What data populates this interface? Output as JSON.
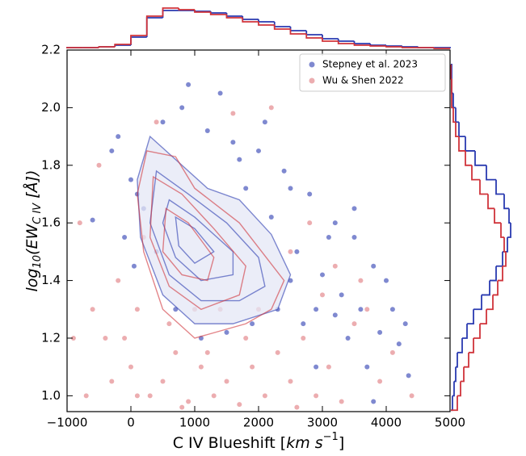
{
  "chart_data": {
    "type": "scatter",
    "xlabel": [
      "C IV Blueshift [",
      "km s",
      "−1",
      "]"
    ],
    "ylabel": [
      "log",
      "10",
      "(EW",
      "C IV",
      " [Å])"
    ],
    "xlim": [
      -1000,
      5000
    ],
    "ylim": [
      0.945,
      2.2
    ],
    "xticks": [
      {
        "value": -1000,
        "label": "−1000"
      },
      0,
      1000,
      2000,
      3000,
      4000,
      5000
    ],
    "yticks": [
      {
        "value": 1.0,
        "label": "1.0"
      },
      1.2,
      1.4,
      1.6,
      1.8,
      {
        "value": 2.0,
        "label": "2.0"
      },
      2.2
    ],
    "legend": "upper right",
    "series": [
      {
        "name": "Stepney et al. 2023",
        "color": "#2a3ab0",
        "x": [
          500,
          800,
          1200,
          1600,
          2000,
          2400,
          2800,
          3200,
          3500,
          3800,
          4100,
          4350,
          -300,
          -200,
          100,
          0,
          200,
          2600,
          3000,
          3300,
          3600,
          3900,
          4200,
          2200,
          1800,
          2500,
          2900,
          3400,
          3700,
          2700,
          3100,
          2300,
          1900,
          1500,
          1100,
          700,
          400,
          -100,
          50,
          1400,
          900,
          3500,
          4000,
          2100,
          2900,
          3800,
          1700,
          2500,
          3200,
          4300,
          -600
        ],
        "y": [
          1.95,
          2.0,
          1.92,
          1.88,
          1.85,
          1.78,
          1.7,
          1.6,
          1.55,
          1.45,
          1.3,
          1.07,
          1.85,
          1.9,
          1.7,
          1.75,
          1.65,
          1.5,
          1.42,
          1.35,
          1.3,
          1.22,
          1.18,
          1.62,
          1.72,
          1.4,
          1.3,
          1.2,
          1.1,
          1.25,
          1.55,
          1.3,
          1.25,
          1.22,
          1.2,
          1.3,
          1.5,
          1.55,
          1.45,
          2.05,
          2.08,
          1.65,
          1.4,
          1.95,
          1.1,
          0.98,
          1.82,
          1.72,
          1.28,
          1.25,
          1.61
        ],
        "contour_fill": "#e4e7f5",
        "contours": [
          {
            "x": [
              300,
              700,
              1200,
              1700,
              2200,
              2500,
              2300,
              1600,
              1000,
              500,
              150,
              100
            ],
            "y": [
              1.9,
              1.82,
              1.72,
              1.68,
              1.56,
              1.42,
              1.3,
              1.25,
              1.25,
              1.35,
              1.55,
              1.75
            ]
          },
          {
            "x": [
              400,
              900,
              1500,
              2000,
              2100,
              1700,
              1100,
              600,
              300
            ],
            "y": [
              1.78,
              1.7,
              1.6,
              1.48,
              1.38,
              1.33,
              1.33,
              1.42,
              1.6
            ]
          },
          {
            "x": [
              600,
              1000,
              1600,
              1600,
              1100,
              700,
              500
            ],
            "y": [
              1.68,
              1.62,
              1.5,
              1.42,
              1.4,
              1.48,
              1.6
            ]
          },
          {
            "x": [
              700,
              1000,
              1300,
              1000,
              750
            ],
            "y": [
              1.62,
              1.58,
              1.5,
              1.46,
              1.52
            ]
          }
        ],
        "xhist": {
          "bins": [
            -1000,
            -750,
            -500,
            -250,
            0,
            250,
            500,
            750,
            1000,
            1250,
            1500,
            1750,
            2000,
            2250,
            2500,
            2750,
            3000,
            3250,
            3500,
            3750,
            4000,
            4250,
            4500,
            4750,
            5000
          ],
          "counts": [
            1,
            1,
            2,
            4,
            14,
            38,
            47,
            47,
            46,
            44,
            40,
            36,
            33,
            27,
            22,
            17,
            12,
            9,
            6,
            4,
            3,
            2,
            1,
            1
          ]
        },
        "yhist": {
          "bins": [
            0.95,
            1.0,
            1.05,
            1.1,
            1.15,
            1.2,
            1.25,
            1.3,
            1.35,
            1.4,
            1.45,
            1.5,
            1.55,
            1.6,
            1.65,
            1.7,
            1.75,
            1.8,
            1.85,
            1.9,
            1.95,
            2.0,
            2.05,
            2.1,
            2.15
          ],
          "counts": [
            2,
            4,
            6,
            8,
            14,
            20,
            28,
            38,
            48,
            56,
            64,
            70,
            74,
            72,
            66,
            56,
            44,
            30,
            18,
            10,
            6,
            3,
            1,
            1
          ]
        }
      },
      {
        "name": "Wu & Shen 2022",
        "color": "#d0333a",
        "x": [
          -800,
          -600,
          -400,
          -200,
          0,
          100,
          300,
          500,
          700,
          900,
          1100,
          1300,
          1500,
          1700,
          1900,
          2100,
          2300,
          2500,
          2700,
          2900,
          3100,
          3300,
          3500,
          3700,
          3900,
          4100,
          -900,
          -700,
          200,
          400,
          -500,
          1600,
          2800,
          3200,
          2500,
          -100,
          600,
          1200,
          1800,
          2000,
          4400,
          2200,
          3000,
          -300,
          800,
          1400,
          3600,
          100,
          2600,
          1000
        ],
        "y": [
          1.6,
          1.3,
          1.2,
          1.4,
          1.1,
          1.3,
          1.0,
          1.05,
          1.15,
          0.98,
          1.1,
          1.0,
          1.05,
          0.97,
          1.1,
          1.0,
          1.15,
          1.05,
          1.2,
          1.0,
          1.1,
          0.98,
          1.25,
          1.3,
          1.05,
          1.15,
          1.2,
          1.0,
          1.55,
          1.95,
          1.8,
          1.98,
          1.6,
          1.45,
          1.5,
          1.2,
          1.25,
          1.15,
          1.2,
          1.3,
          1.0,
          2.0,
          1.35,
          1.05,
          0.96,
          1.3,
          1.4,
          1.0,
          0.96,
          1.3
        ],
        "contours": [
          {
            "x": [
              250,
              700,
              1000,
              1700,
              2400,
              2200,
              1800,
              1000,
              500,
              200,
              100
            ],
            "y": [
              1.85,
              1.83,
              1.72,
              1.6,
              1.4,
              1.3,
              1.25,
              1.2,
              1.3,
              1.5,
              1.7
            ]
          },
          {
            "x": [
              350,
              800,
              1300,
              1800,
              1700,
              1100,
              600,
              300
            ],
            "y": [
              1.76,
              1.7,
              1.58,
              1.45,
              1.35,
              1.3,
              1.38,
              1.55
            ]
          },
          {
            "x": [
              550,
              900,
              1300,
              1200,
              800,
              500
            ],
            "y": [
              1.65,
              1.6,
              1.48,
              1.4,
              1.42,
              1.5
            ]
          }
        ],
        "xhist": {
          "bins": [
            -1000,
            -750,
            -500,
            -250,
            0,
            250,
            500,
            750,
            1000,
            1250,
            1500,
            1750,
            2000,
            2250,
            2500,
            2750,
            3000,
            3250,
            3500,
            3750,
            4000,
            4250,
            4500,
            4750,
            5000
          ],
          "counts": [
            1,
            1,
            2,
            5,
            16,
            40,
            50,
            48,
            45,
            42,
            38,
            33,
            29,
            24,
            18,
            13,
            9,
            6,
            4,
            3,
            2,
            1,
            1,
            0
          ]
        },
        "yhist": {
          "bins": [
            0.95,
            1.0,
            1.05,
            1.1,
            1.15,
            1.2,
            1.25,
            1.3,
            1.35,
            1.4,
            1.45,
            1.5,
            1.55,
            1.6,
            1.65,
            1.7,
            1.75,
            1.8,
            1.85,
            1.9,
            1.95,
            2.0,
            2.05,
            2.1,
            2.15
          ],
          "counts": [
            8,
            12,
            16,
            22,
            28,
            36,
            44,
            52,
            58,
            64,
            68,
            66,
            62,
            54,
            46,
            36,
            26,
            18,
            10,
            6,
            3,
            1,
            1,
            0
          ]
        }
      }
    ]
  }
}
